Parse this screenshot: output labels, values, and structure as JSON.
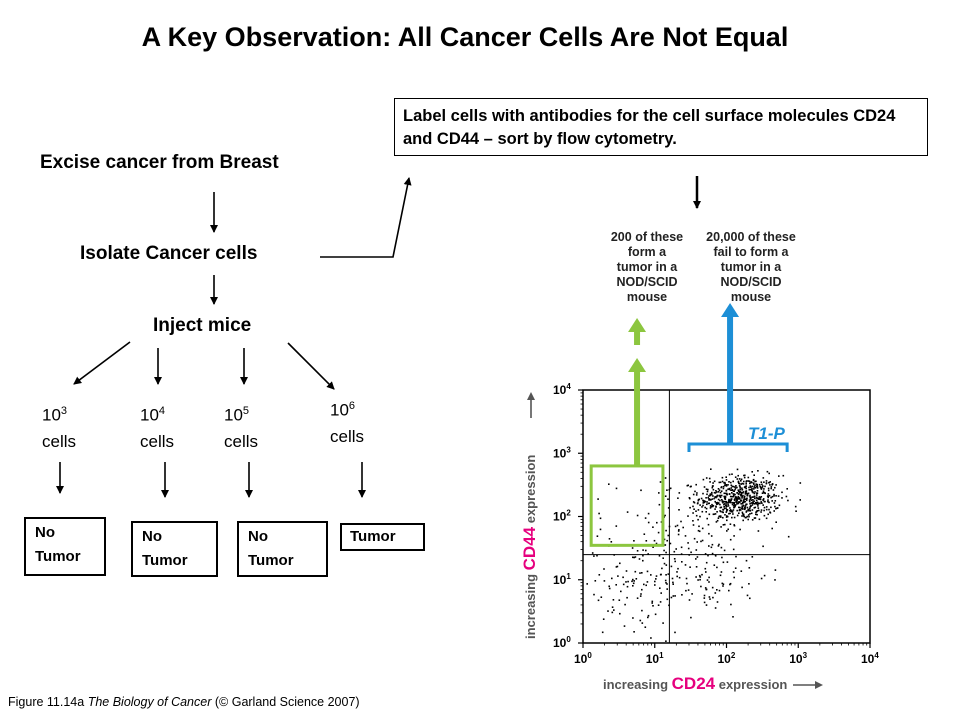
{
  "title": "A Key Observation: All Cancer Cells Are Not Equal",
  "steps": {
    "excise": "Excise cancer from Breast",
    "isolate": "Isolate Cancer cells",
    "inject": "Inject mice"
  },
  "label_note": "Label cells with antibodies for the cell surface molecules CD24 and CD44 – sort by flow cytometry.",
  "doses": [
    {
      "base": "10",
      "exp": "3",
      "unit": "cells",
      "outcome": [
        "No",
        "Tumor"
      ]
    },
    {
      "base": "10",
      "exp": "4",
      "unit": "cells",
      "outcome": [
        "No",
        "Tumor"
      ]
    },
    {
      "base": "10",
      "exp": "5",
      "unit": "cells",
      "outcome": [
        "No",
        "Tumor"
      ]
    },
    {
      "base": "10",
      "exp": "6",
      "unit": "cells",
      "outcome": [
        "Tumor"
      ]
    }
  ],
  "callouts": {
    "green": [
      "200 of these",
      "form a",
      "tumor in a",
      "NOD/SCID",
      "mouse"
    ],
    "blue": [
      "20,000 of these",
      "fail to form a",
      "tumor in a",
      "NOD/SCID",
      "mouse"
    ]
  },
  "colors": {
    "green": "#8cc63f",
    "blue": "#1d8fd6"
  },
  "chart_data": {
    "type": "scatter",
    "xlabel": {
      "prefix": "increasing",
      "marker": "CD24",
      "suffix": "expression"
    },
    "ylabel": {
      "prefix": "increasing",
      "marker": "CD44",
      "suffix": "expression"
    },
    "x_scale": "log",
    "y_scale": "log",
    "xlim": [
      1,
      10000
    ],
    "ylim": [
      1,
      10000
    ],
    "x_ticks": [
      {
        "base": "10",
        "exp": "0"
      },
      {
        "base": "10",
        "exp": "1"
      },
      {
        "base": "10",
        "exp": "2"
      },
      {
        "base": "10",
        "exp": "3"
      },
      {
        "base": "10",
        "exp": "4"
      }
    ],
    "y_ticks": [
      {
        "base": "10",
        "exp": "0"
      },
      {
        "base": "10",
        "exp": "1"
      },
      {
        "base": "10",
        "exp": "2"
      },
      {
        "base": "10",
        "exp": "3"
      },
      {
        "base": "10",
        "exp": "4"
      }
    ],
    "quadrant_divider": {
      "x": 16,
      "y": 25
    },
    "gate_green": {
      "x": [
        1.3,
        13
      ],
      "y": [
        35,
        630
      ]
    },
    "gate_blue_label": "T1-P",
    "gate_blue_range": [
      30,
      700
    ],
    "populations": [
      {
        "name": "",
        "count": 620,
        "center": [
          150,
          200
        ],
        "spread": [
          0.28,
          0.18
        ]
      },
      {
        "name": "",
        "count": 140,
        "center": [
          25,
          60
        ],
        "spread": [
          0.5,
          0.45
        ]
      },
      {
        "name": "",
        "count": 120,
        "center": [
          5,
          8
        ],
        "spread": [
          0.45,
          0.45
        ]
      },
      {
        "name": "",
        "count": 80,
        "center": [
          60,
          12
        ],
        "spread": [
          0.4,
          0.3
        ]
      }
    ]
  },
  "caption": {
    "prefix": "Figure 11.14a",
    "book": "The Biology of Cancer",
    "suffix": "(© Garland Science 2007)"
  }
}
